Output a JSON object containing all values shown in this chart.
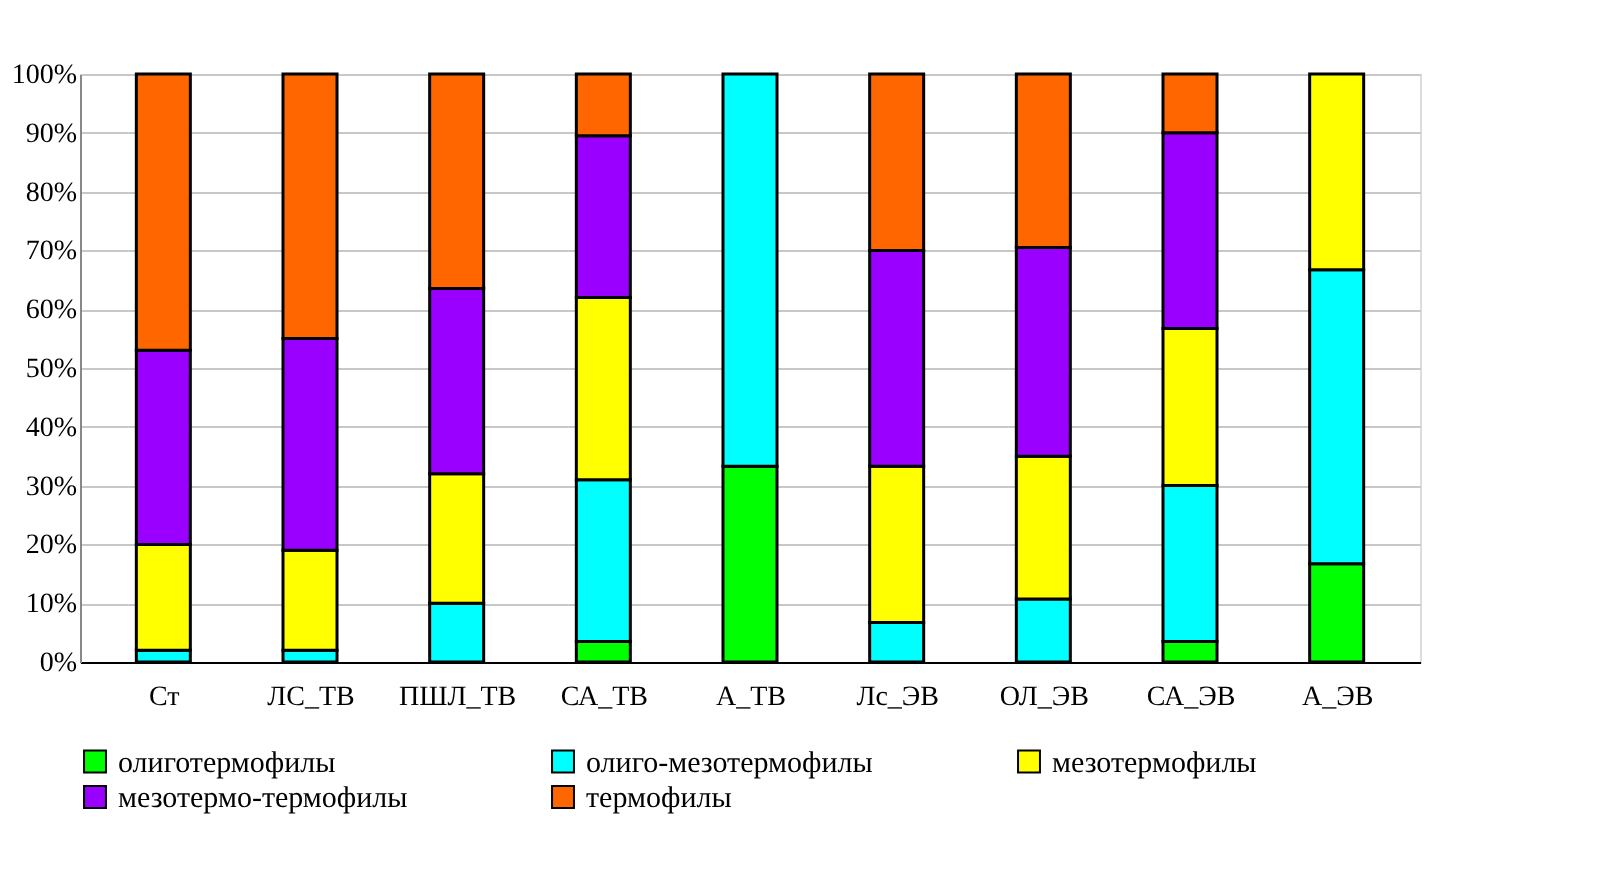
{
  "chart_data": {
    "type": "bar",
    "stacked": true,
    "categories": [
      "Ст",
      "ЛС_ТВ",
      "ПШЛ_ТВ",
      "СА_ТВ",
      "А_ТВ",
      "Лс_ЭВ",
      "ОЛ_ЭВ",
      "СА_ЭВ",
      "А_ЭВ"
    ],
    "series": [
      {
        "name": "олиготермофилы",
        "color": "#00ff00",
        "values": [
          0,
          0,
          0,
          3.5,
          33.3,
          0,
          0,
          3.5,
          16.7
        ]
      },
      {
        "name": "олиго-мезотермофилы",
        "color": "#00ffff",
        "values": [
          2,
          2,
          10,
          27.5,
          66.7,
          6.7,
          10.7,
          26.5,
          50
        ]
      },
      {
        "name": "мезотермофилы",
        "color": "#ffff00",
        "values": [
          18,
          17,
          22,
          31,
          0,
          26.6,
          24.3,
          26.7,
          33.3
        ]
      },
      {
        "name": "мезотермо-термофилы",
        "color": "#9900ff",
        "values": [
          33,
          36,
          31.5,
          27.5,
          0,
          36.7,
          35.5,
          33.3,
          0
        ]
      },
      {
        "name": "термофилы",
        "color": "#ff6600",
        "values": [
          47,
          45,
          36.5,
          10.5,
          0,
          30,
          29.5,
          10,
          0
        ]
      }
    ],
    "ylim": [
      0,
      100
    ],
    "yticks": [
      {
        "value": 0,
        "label": "0%"
      },
      {
        "value": 10,
        "label": "10%"
      },
      {
        "value": 20,
        "label": "20%"
      },
      {
        "value": 30,
        "label": "30%"
      },
      {
        "value": 40,
        "label": "40%"
      },
      {
        "value": 50,
        "label": "50%"
      },
      {
        "value": 60,
        "label": "60%"
      },
      {
        "value": 70,
        "label": "70%"
      },
      {
        "value": 80,
        "label": "80%"
      },
      {
        "value": 90,
        "label": "90%"
      },
      {
        "value": 100,
        "label": "100%"
      }
    ],
    "grid": "y",
    "legend": "bottom"
  }
}
